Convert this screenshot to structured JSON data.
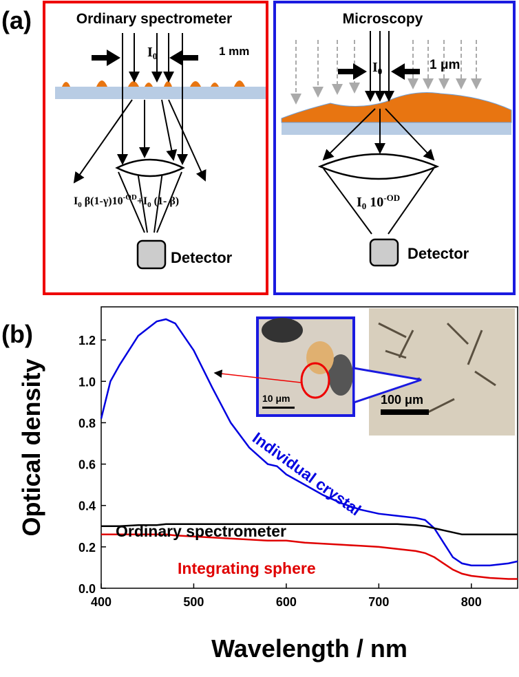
{
  "panel_a": {
    "label": "(a)",
    "left": {
      "title": "Ordinary spectrometer",
      "beam": [
        "I",
        "0"
      ],
      "width": "1 mm",
      "formula": [
        "I",
        "0",
        " β(1-γ)10",
        "-OD",
        "+I",
        "0",
        " (1- β)"
      ],
      "detector": "Detector"
    },
    "right": {
      "title": "Microscopy",
      "beam": [
        "I",
        "0"
      ],
      "width": "1 μm",
      "formula": [
        "I",
        "0",
        " 10",
        "-OD"
      ],
      "detector": "Detector"
    }
  },
  "panel_b": {
    "label": "(b)",
    "inset_small_scale": "10 μm",
    "inset_large_scale": "100 μm"
  },
  "chart_data": {
    "type": "line",
    "xlabel": "Wavelength / nm",
    "ylabel": "Optical density",
    "x": [
      400,
      410,
      420,
      440,
      460,
      470,
      480,
      500,
      520,
      540,
      560,
      580,
      590,
      600,
      620,
      640,
      660,
      680,
      700,
      720,
      740,
      750,
      760,
      770,
      780,
      790,
      800,
      820,
      840,
      850
    ],
    "series": [
      {
        "name": "Individual crystal",
        "color": "#0000e0",
        "values": [
          0.82,
          1.0,
          1.08,
          1.22,
          1.29,
          1.3,
          1.28,
          1.15,
          0.97,
          0.8,
          0.68,
          0.6,
          0.59,
          0.55,
          0.5,
          0.45,
          0.41,
          0.38,
          0.36,
          0.35,
          0.34,
          0.33,
          0.29,
          0.22,
          0.15,
          0.12,
          0.11,
          0.11,
          0.12,
          0.13
        ]
      },
      {
        "name": "Ordinary spectrometer",
        "color": "#000000",
        "values": [
          0.3,
          0.3,
          0.3,
          0.305,
          0.305,
          0.31,
          0.31,
          0.31,
          0.31,
          0.31,
          0.31,
          0.31,
          0.31,
          0.31,
          0.31,
          0.31,
          0.31,
          0.31,
          0.31,
          0.31,
          0.305,
          0.3,
          0.29,
          0.28,
          0.27,
          0.26,
          0.26,
          0.26,
          0.26,
          0.26
        ]
      },
      {
        "name": "Integrating sphere",
        "color": "#e00000",
        "values": [
          0.26,
          0.26,
          0.26,
          0.26,
          0.26,
          0.26,
          0.255,
          0.25,
          0.245,
          0.24,
          0.235,
          0.23,
          0.23,
          0.23,
          0.22,
          0.215,
          0.21,
          0.205,
          0.2,
          0.19,
          0.18,
          0.17,
          0.15,
          0.12,
          0.09,
          0.07,
          0.06,
          0.05,
          0.045,
          0.045
        ]
      }
    ],
    "xlim": [
      400,
      850
    ],
    "xticks": [
      400,
      500,
      600,
      700,
      800
    ],
    "ylim": [
      0,
      1.36
    ],
    "yticks": [
      {
        "value": 0,
        "label": "0.0"
      },
      0.2,
      0.4,
      0.6,
      0.8,
      {
        "value": 1,
        "label": "1.0"
      },
      1.2
    ]
  }
}
